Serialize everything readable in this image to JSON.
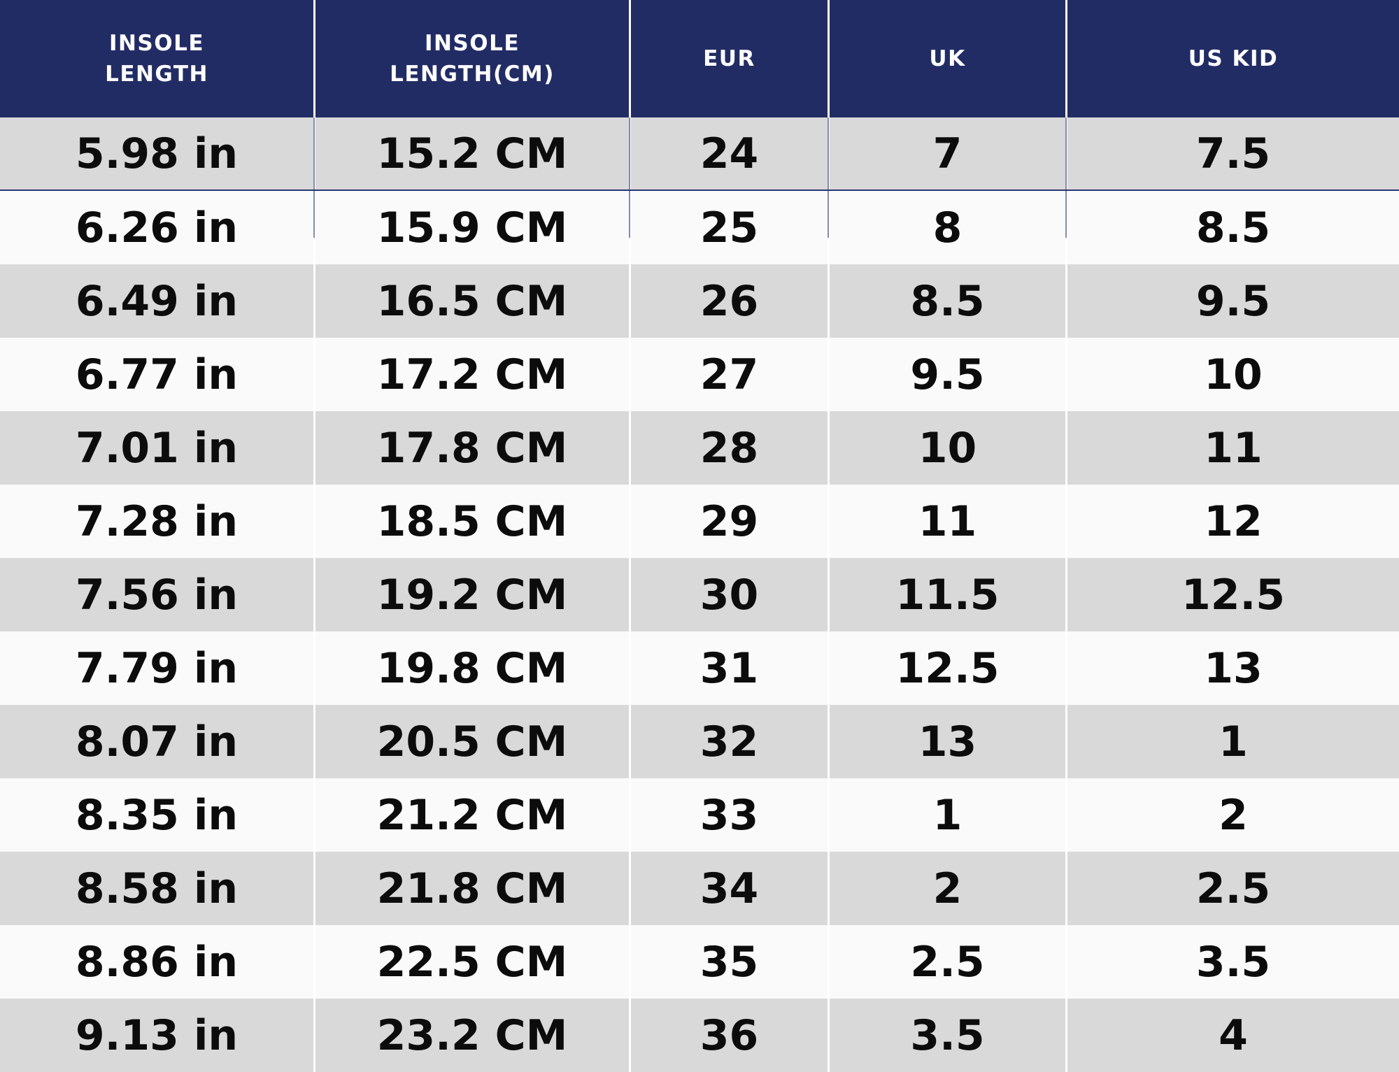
{
  "colors": {
    "header_bg": "#222c64",
    "header_text": "#ffffff",
    "row_alt": "#d9d9d9",
    "row_base": "#fafafa",
    "divider": "#ffffff",
    "accent_line": "#2b3670",
    "cell_text": "#0c0c0c"
  },
  "table": {
    "headers": [
      {
        "lines": [
          "INSOLE",
          "LENGTH"
        ]
      },
      {
        "lines": [
          "INSOLE",
          "LENGTH(CM)"
        ]
      },
      {
        "lines": [
          "EUR"
        ]
      },
      {
        "lines": [
          "UK"
        ]
      },
      {
        "lines": [
          "US KID"
        ]
      }
    ],
    "rows": [
      [
        "5.98 in",
        "15.2 CM",
        "24",
        "7",
        "7.5"
      ],
      [
        "6.26 in",
        "15.9 CM",
        "25",
        "8",
        "8.5"
      ],
      [
        "6.49 in",
        "16.5 CM",
        "26",
        "8.5",
        "9.5"
      ],
      [
        "6.77 in",
        "17.2 CM",
        "27",
        "9.5",
        "10"
      ],
      [
        "7.01 in",
        "17.8 CM",
        "28",
        "10",
        "11"
      ],
      [
        "7.28 in",
        "18.5 CM",
        "29",
        "11",
        "12"
      ],
      [
        "7.56 in",
        "19.2 CM",
        "30",
        "11.5",
        "12.5"
      ],
      [
        "7.79 in",
        "19.8 CM",
        "31",
        "12.5",
        "13"
      ],
      [
        "8.07 in",
        "20.5 CM",
        "32",
        "13",
        "1"
      ],
      [
        "8.35 in",
        "21.2 CM",
        "33",
        "1",
        "2"
      ],
      [
        "8.58 in",
        "21.8 CM",
        "34",
        "2",
        "2.5"
      ],
      [
        "8.86 in",
        "22.5 CM",
        "35",
        "2.5",
        "3.5"
      ],
      [
        "9.13 in",
        "23.2 CM",
        "36",
        "3.5",
        "4"
      ]
    ]
  },
  "chart_data": {
    "type": "table",
    "columns": [
      "INSOLE LENGTH",
      "INSOLE LENGTH(CM)",
      "EUR",
      "UK",
      "US KID"
    ],
    "rows": [
      [
        "5.98 in",
        "15.2 CM",
        "24",
        "7",
        "7.5"
      ],
      [
        "6.26 in",
        "15.9 CM",
        "25",
        "8",
        "8.5"
      ],
      [
        "6.49 in",
        "16.5 CM",
        "26",
        "8.5",
        "9.5"
      ],
      [
        "6.77 in",
        "17.2 CM",
        "27",
        "9.5",
        "10"
      ],
      [
        "7.01 in",
        "17.8 CM",
        "28",
        "10",
        "11"
      ],
      [
        "7.28 in",
        "18.5 CM",
        "29",
        "11",
        "12"
      ],
      [
        "7.56 in",
        "19.2 CM",
        "30",
        "11.5",
        "12.5"
      ],
      [
        "7.79 in",
        "19.8 CM",
        "31",
        "12.5",
        "13"
      ],
      [
        "8.07 in",
        "20.5 CM",
        "32",
        "13",
        "1"
      ],
      [
        "8.35 in",
        "21.2 CM",
        "33",
        "1",
        "2"
      ],
      [
        "8.58 in",
        "21.8 CM",
        "34",
        "2",
        "2.5"
      ],
      [
        "8.86 in",
        "22.5 CM",
        "35",
        "2.5",
        "3.5"
      ],
      [
        "9.13 in",
        "23.2 CM",
        "36",
        "3.5",
        "4"
      ]
    ],
    "layout": {
      "header_position": "top",
      "row_striping": "odd-rows-gray",
      "grid": "white-column-dividers",
      "accent_rule_below_first_data_row": true
    }
  }
}
